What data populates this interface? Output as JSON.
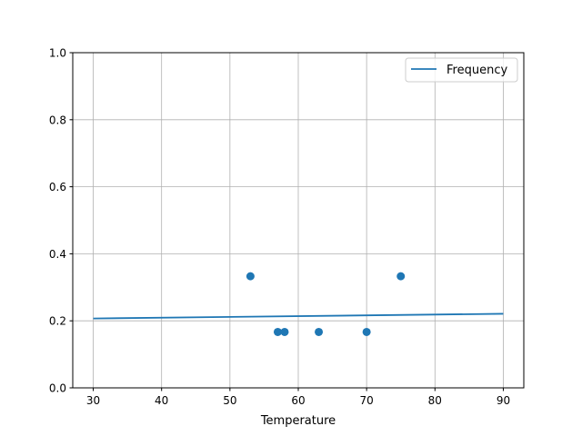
{
  "chart_data": {
    "type": "scatter",
    "title": "",
    "xlabel": "Temperature",
    "ylabel": "",
    "xlim": [
      27,
      93
    ],
    "ylim": [
      0,
      1
    ],
    "xticks": [
      30,
      40,
      50,
      60,
      70,
      80,
      90
    ],
    "xtick_labels": [
      "30",
      "40",
      "50",
      "60",
      "70",
      "80",
      "90"
    ],
    "yticks": [
      0,
      0.2,
      0.4,
      0.6,
      0.8,
      1.0
    ],
    "ytick_labels": [
      "0.0",
      "0.2",
      "0.4",
      "0.6",
      "0.8",
      "1.0"
    ],
    "grid": true,
    "legend_position": "upper right",
    "series": [
      {
        "name": "Frequency",
        "kind": "line",
        "color": "#1f77b4",
        "x": [
          30,
          90
        ],
        "y": [
          0.207,
          0.221
        ]
      },
      {
        "kind": "scatter",
        "color": "#1f77b4",
        "x": [
          53,
          57,
          58,
          63,
          70,
          75
        ],
        "y": [
          0.333,
          0.1667,
          0.1667,
          0.1667,
          0.1667,
          0.333
        ]
      }
    ]
  }
}
